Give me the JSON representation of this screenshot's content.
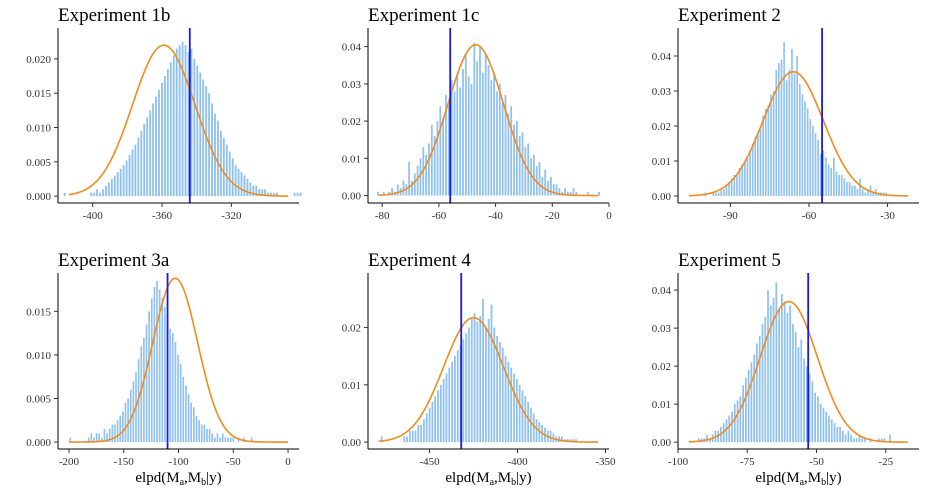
{
  "figure": {
    "x_axis_label": "elpd(M_a,M_b|y)",
    "x_axis_label_parts": [
      "elpd(M",
      "a",
      ",M",
      "b",
      "|y)"
    ]
  },
  "colors": {
    "bars": "#8ec0f0",
    "curve": "#f08c1e",
    "vline": "#1a1ae0"
  },
  "chart_data": [
    {
      "type": "bar",
      "title": "Experiment 1b",
      "xlim": [
        -420,
        -281
      ],
      "ylim": [
        -0.001,
        0.0245
      ],
      "xticks": [
        -400,
        -360,
        -320
      ],
      "yticks": [
        0.0,
        0.005,
        0.01,
        0.015,
        0.02
      ],
      "ytick_labels": [
        "0.000",
        "0.005",
        "0.010",
        "0.015",
        "0.020"
      ],
      "normal": {
        "mean": -359,
        "sd": 18,
        "peak": 0.022
      },
      "vline": -344,
      "bins": {
        "start": -417,
        "width": 1.7,
        "values": [
          0.0005,
          0,
          0,
          0,
          0,
          0,
          0,
          0,
          0,
          0.0005,
          0.0005,
          0.001,
          0.0005,
          0.001,
          0.0015,
          0.002,
          0.0025,
          0.003,
          0.0035,
          0.004,
          0.0045,
          0.0052,
          0.006,
          0.0068,
          0.0075,
          0.0085,
          0.0095,
          0.0105,
          0.0115,
          0.0125,
          0.0135,
          0.0145,
          0.0155,
          0.0165,
          0.0175,
          0.0185,
          0.0195,
          0.0205,
          0.0215,
          0.022,
          0.0225,
          0.022,
          0.021,
          0.0215,
          0.02,
          0.019,
          0.018,
          0.017,
          0.016,
          0.015,
          0.0135,
          0.012,
          0.011,
          0.0095,
          0.0085,
          0.0075,
          0.0065,
          0.0055,
          0.0045,
          0.004,
          0.0035,
          0.003,
          0.0025,
          0.002,
          0.0015,
          0.0015,
          0.001,
          0.001,
          0.001,
          0.0005,
          0.0005,
          0.0005,
          0.0005,
          0,
          0,
          0,
          0,
          0,
          0.0005,
          0.0005,
          0.0005
        ]
      }
    },
    {
      "type": "bar",
      "title": "Experiment 1c",
      "xlim": [
        -85,
        0
      ],
      "ylim": [
        -0.002,
        0.045
      ],
      "xticks": [
        -80,
        -60,
        -40,
        -20,
        0
      ],
      "yticks": [
        0.0,
        0.01,
        0.02,
        0.03,
        0.04
      ],
      "ytick_labels": [
        "0.00",
        "0.01",
        "0.02",
        "0.03",
        "0.04"
      ],
      "normal": {
        "mean": -47,
        "sd": 9.8,
        "peak": 0.0405
      },
      "vline": -56,
      "bins": {
        "start": -82,
        "width": 1.0,
        "values": [
          0.001,
          0,
          0.001,
          0,
          0.001,
          0.002,
          0.001,
          0.003,
          0.002,
          0.004,
          0.003,
          0.009,
          0.004,
          0.006,
          0.008,
          0.01,
          0.013,
          0.011,
          0.014,
          0.019,
          0.016,
          0.02,
          0.024,
          0.021,
          0.027,
          0.025,
          0.031,
          0.028,
          0.033,
          0.029,
          0.034,
          0.038,
          0.032,
          0.03,
          0.041,
          0.036,
          0.04,
          0.033,
          0.038,
          0.035,
          0.031,
          0.033,
          0.028,
          0.03,
          0.025,
          0.027,
          0.022,
          0.024,
          0.019,
          0.02,
          0.016,
          0.017,
          0.013,
          0.014,
          0.01,
          0.011,
          0.008,
          0.009,
          0.005,
          0.007,
          0.004,
          0.005,
          0.003,
          0.003,
          0.002,
          0.001,
          0.002,
          0.001,
          0.001,
          0.002,
          0.001,
          0,
          0,
          0,
          0.001,
          0,
          0,
          0,
          0.001
        ]
      }
    },
    {
      "type": "bar",
      "title": "Experiment 2",
      "xlim": [
        -110,
        -18
      ],
      "ylim": [
        -0.002,
        0.048
      ],
      "xticks": [
        -90,
        -60,
        -30
      ],
      "yticks": [
        0.0,
        0.01,
        0.02,
        0.03,
        0.04
      ],
      "ytick_labels": [
        "0.00",
        "0.01",
        "0.02",
        "0.03",
        "0.04"
      ],
      "normal": {
        "mean": -66,
        "sd": 11.5,
        "peak": 0.0355
      },
      "vline": -55,
      "bins": {
        "start": -100,
        "width": 1.0,
        "values": [
          0.001,
          0,
          0,
          0.001,
          0.001,
          0.001,
          0.002,
          0.002,
          0.003,
          0.004,
          0.005,
          0.006,
          0.006,
          0.008,
          0.009,
          0.01,
          0.011,
          0.013,
          0.015,
          0.017,
          0.018,
          0.019,
          0.023,
          0.025,
          0.026,
          0.029,
          0.03,
          0.036,
          0.038,
          0.039,
          0.044,
          0.033,
          0.036,
          0.042,
          0.035,
          0.04,
          0.032,
          0.029,
          0.027,
          0.025,
          0.022,
          0.02,
          0.018,
          0.016,
          0.012,
          0.013,
          0.011,
          0.009,
          0.008,
          0.011,
          0.007,
          0.006,
          0.006,
          0.005,
          0.004,
          0.004,
          0.003,
          0.003,
          0.002,
          0.005,
          0.002,
          0.001,
          0.002,
          0.003,
          0.001,
          0.002,
          0.001,
          0.001,
          0.001,
          0.001
        ]
      }
    },
    {
      "type": "bar",
      "title": "Experiment 3a",
      "xlim": [
        -210,
        10
      ],
      "ylim": [
        -0.0008,
        0.0194
      ],
      "xticks": [
        -200,
        -150,
        -100,
        -50,
        0
      ],
      "yticks": [
        0.0,
        0.005,
        0.01,
        0.015
      ],
      "ytick_labels": [
        "0.000",
        "0.005",
        "0.010",
        "0.015"
      ],
      "normal": {
        "mean": -103,
        "sd": 20.5,
        "peak": 0.0188
      },
      "vline": -110,
      "bins": {
        "start": -200,
        "width": 2.4,
        "values": [
          0.0005,
          0,
          0,
          0,
          0,
          0,
          0,
          0.0005,
          0.001,
          0.0005,
          0.001,
          0.001,
          0.0005,
          0.0015,
          0.001,
          0.0015,
          0.002,
          0.002,
          0.0025,
          0.003,
          0.0035,
          0.0045,
          0.005,
          0.006,
          0.007,
          0.008,
          0.0095,
          0.011,
          0.012,
          0.0135,
          0.015,
          0.0165,
          0.0178,
          0.0185,
          0.0175,
          0.0165,
          0.0155,
          0.0145,
          0.013,
          0.0125,
          0.0115,
          0.01,
          0.009,
          0.0075,
          0.0065,
          0.0055,
          0.0045,
          0.004,
          0.003,
          0.0025,
          0.002,
          0.002,
          0.0015,
          0.0015,
          0.001,
          0.0005,
          0.001,
          0.0005,
          0.001,
          0.0005,
          0.0005,
          0.0005,
          0.0005,
          0,
          0.0005,
          0,
          0.0005,
          0,
          0,
          0.0005
        ]
      }
    },
    {
      "type": "bar",
      "title": "Experiment 4",
      "xlim": [
        -485,
        -348
      ],
      "ylim": [
        -0.0012,
        0.0295
      ],
      "xticks": [
        -450,
        -400,
        -350
      ],
      "yticks": [
        0.0,
        0.01,
        0.02
      ],
      "ytick_labels": [
        "0.00",
        "0.01",
        "0.02"
      ],
      "normal": {
        "mean": -425,
        "sd": 17,
        "peak": 0.0217
      },
      "vline": -432,
      "bins": {
        "start": -478,
        "width": 1.6,
        "values": [
          0.001,
          0,
          0,
          0,
          0,
          0,
          0,
          0,
          0.001,
          0.001,
          0.002,
          0.002,
          0.002,
          0.003,
          0.003,
          0.004,
          0.005,
          0.006,
          0.007,
          0.008,
          0.009,
          0.01,
          0.011,
          0.012,
          0.013,
          0.014,
          0.015,
          0.016,
          0.017,
          0.018,
          0.019,
          0.02,
          0.0215,
          0.0225,
          0.021,
          0.022,
          0.025,
          0.02,
          0.0215,
          0.024,
          0.02,
          0.0185,
          0.0175,
          0.0165,
          0.015,
          0.014,
          0.013,
          0.012,
          0.011,
          0.01,
          0.009,
          0.008,
          0.007,
          0.006,
          0.005,
          0.004,
          0.0035,
          0.003,
          0.0025,
          0.002,
          0.002,
          0.0015,
          0.001,
          0.001,
          0.001,
          0.0005,
          0.0005,
          0.0005,
          0.0005,
          0.0005
        ]
      }
    },
    {
      "type": "bar",
      "title": "Experiment 5",
      "xlim": [
        -100,
        -13
      ],
      "ylim": [
        -0.0018,
        0.0445
      ],
      "xticks": [
        -100,
        -75,
        -50,
        -25
      ],
      "yticks": [
        0.0,
        0.01,
        0.02,
        0.03,
        0.04
      ],
      "ytick_labels": [
        "0.00",
        "0.01",
        "0.02",
        "0.03",
        "0.04"
      ],
      "normal": {
        "mean": -60,
        "sd": 10.3,
        "peak": 0.037
      },
      "vline": -53,
      "bins": {
        "start": -93,
        "width": 1.0,
        "values": [
          0.001,
          0.001,
          0.001,
          0.002,
          0.001,
          0.002,
          0.003,
          0.003,
          0.004,
          0.005,
          0.006,
          0.007,
          0.008,
          0.01,
          0.011,
          0.012,
          0.015,
          0.017,
          0.019,
          0.021,
          0.023,
          0.026,
          0.028,
          0.031,
          0.033,
          0.04,
          0.036,
          0.038,
          0.042,
          0.035,
          0.039,
          0.037,
          0.034,
          0.036,
          0.031,
          0.029,
          0.025,
          0.027,
          0.022,
          0.02,
          0.018,
          0.016,
          0.013,
          0.012,
          0.01,
          0.009,
          0.008,
          0.007,
          0.006,
          0.005,
          0.004,
          0.004,
          0.003,
          0.002,
          0.003,
          0.002,
          0.001,
          0.001,
          0.002,
          0.001,
          0.001,
          0,
          0.001,
          0,
          0,
          0.001,
          0.001,
          0.001,
          0,
          0.002
        ]
      }
    }
  ]
}
